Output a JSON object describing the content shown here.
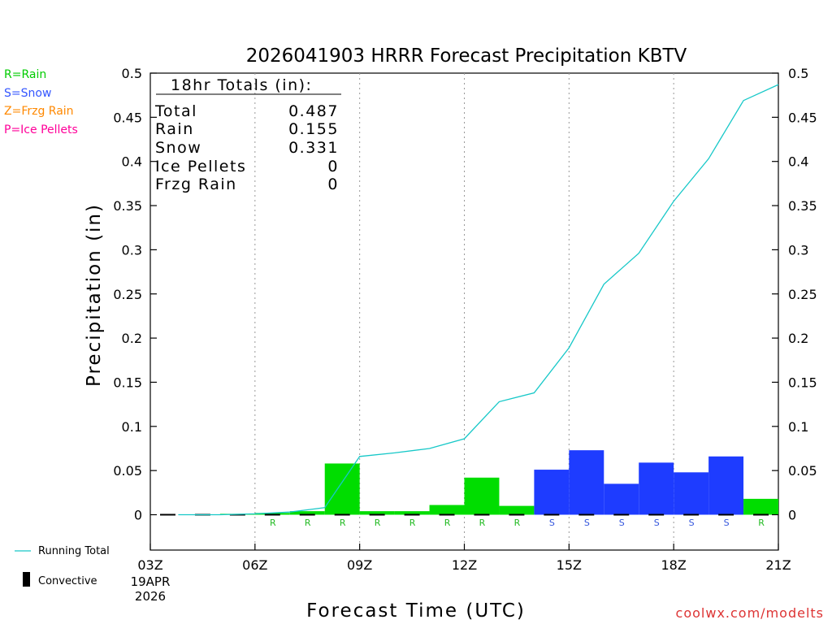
{
  "chart_data": {
    "type": "bar",
    "title": "2026041903 HRRR Forecast Precipitation KBTV",
    "xlabel": "Forecast Time (UTC)",
    "ylabel": "Precipitation (in)",
    "ylim": [
      0,
      0.5
    ],
    "xlim": [
      3,
      21
    ],
    "y_ticks": [
      "0",
      "0.05",
      "0.1",
      "0.15",
      "0.2",
      "0.25",
      "0.3",
      "0.35",
      "0.4",
      "0.45",
      "0.5"
    ],
    "x_ticks": [
      {
        "label": "03Z",
        "hour": 3
      },
      {
        "label": "06Z",
        "hour": 6
      },
      {
        "label": "09Z",
        "hour": 9
      },
      {
        "label": "12Z",
        "hour": 12
      },
      {
        "label": "15Z",
        "hour": 15
      },
      {
        "label": "18Z",
        "hour": 18
      },
      {
        "label": "21Z",
        "hour": 21
      }
    ],
    "date_line1": "19APR",
    "date_line2": "2026",
    "hourly_bars": [
      {
        "hour": 4,
        "value": 0.0,
        "type": "R"
      },
      {
        "hour": 5,
        "value": 0.0,
        "type": "R"
      },
      {
        "hour": 6,
        "value": 0.001,
        "type": "R"
      },
      {
        "hour": 7,
        "value": 0.002,
        "type": "R"
      },
      {
        "hour": 8,
        "value": 0.004,
        "type": "R"
      },
      {
        "hour": 9,
        "value": 0.058,
        "type": "R"
      },
      {
        "hour": 10,
        "value": 0.004,
        "type": "R"
      },
      {
        "hour": 11,
        "value": 0.004,
        "type": "R"
      },
      {
        "hour": 12,
        "value": 0.011,
        "type": "R"
      },
      {
        "hour": 13,
        "value": 0.042,
        "type": "R"
      },
      {
        "hour": 14,
        "value": 0.01,
        "type": "R"
      },
      {
        "hour": 15,
        "value": 0.051,
        "type": "S"
      },
      {
        "hour": 16,
        "value": 0.073,
        "type": "S"
      },
      {
        "hour": 17,
        "value": 0.035,
        "type": "S"
      },
      {
        "hour": 18,
        "value": 0.059,
        "type": "S"
      },
      {
        "hour": 19,
        "value": 0.048,
        "type": "S"
      },
      {
        "hour": 20,
        "value": 0.066,
        "type": "S"
      },
      {
        "hour": 21,
        "value": 0.018,
        "type": "R"
      }
    ],
    "ptype_labels": [
      {
        "hour": 7,
        "label": "R"
      },
      {
        "hour": 8,
        "label": "R"
      },
      {
        "hour": 9,
        "label": "R"
      },
      {
        "hour": 10,
        "label": "R"
      },
      {
        "hour": 11,
        "label": "R"
      },
      {
        "hour": 12,
        "label": "R"
      },
      {
        "hour": 13,
        "label": "R"
      },
      {
        "hour": 14,
        "label": "R"
      },
      {
        "hour": 15,
        "label": "S"
      },
      {
        "hour": 16,
        "label": "S"
      },
      {
        "hour": 17,
        "label": "S"
      },
      {
        "hour": 18,
        "label": "S"
      },
      {
        "hour": 19,
        "label": "S"
      },
      {
        "hour": 20,
        "label": "S"
      },
      {
        "hour": 21,
        "label": "R"
      }
    ],
    "running_total": {
      "hours": [
        3.8,
        5,
        6,
        7,
        8,
        9,
        10,
        11,
        12,
        13,
        14,
        15,
        16,
        17,
        18,
        19,
        20,
        21
      ],
      "values": [
        0,
        0.0,
        0.001,
        0.003,
        0.008,
        0.066,
        0.07,
        0.075,
        0.086,
        0.128,
        0.138,
        0.189,
        0.261,
        0.296,
        0.355,
        0.403,
        0.469,
        0.487
      ]
    },
    "totals_box": {
      "heading": "18hr Totals (in):",
      "rows": [
        {
          "label": "Total",
          "value": "0.487"
        },
        {
          "label": "Rain",
          "value": "0.155"
        },
        {
          "label": "Snow",
          "value": "0.331"
        },
        {
          "label": "Ice Pellets",
          "value": "0"
        },
        {
          "label": "Frzg Rain",
          "value": "0"
        }
      ]
    },
    "legend": [
      {
        "label": "R=Rain",
        "color": "#00cc00"
      },
      {
        "label": "S=Snow",
        "color": "#3355ff"
      },
      {
        "label": "Z=Frzg Rain",
        "color": "#ff8800"
      },
      {
        "label": "P=Ice Pellets",
        "color": "#ff0099"
      }
    ],
    "bottom_legend": {
      "running_total": "Running Total",
      "convective": "Convective"
    },
    "colors": {
      "rain": "#00dd00",
      "snow": "#1e3cff",
      "line": "#17c8c8",
      "rain_label": "#22bb22",
      "snow_label": "#3355dd",
      "watermark": "#dd3333"
    },
    "watermark": "coolwx.com/modelts"
  }
}
